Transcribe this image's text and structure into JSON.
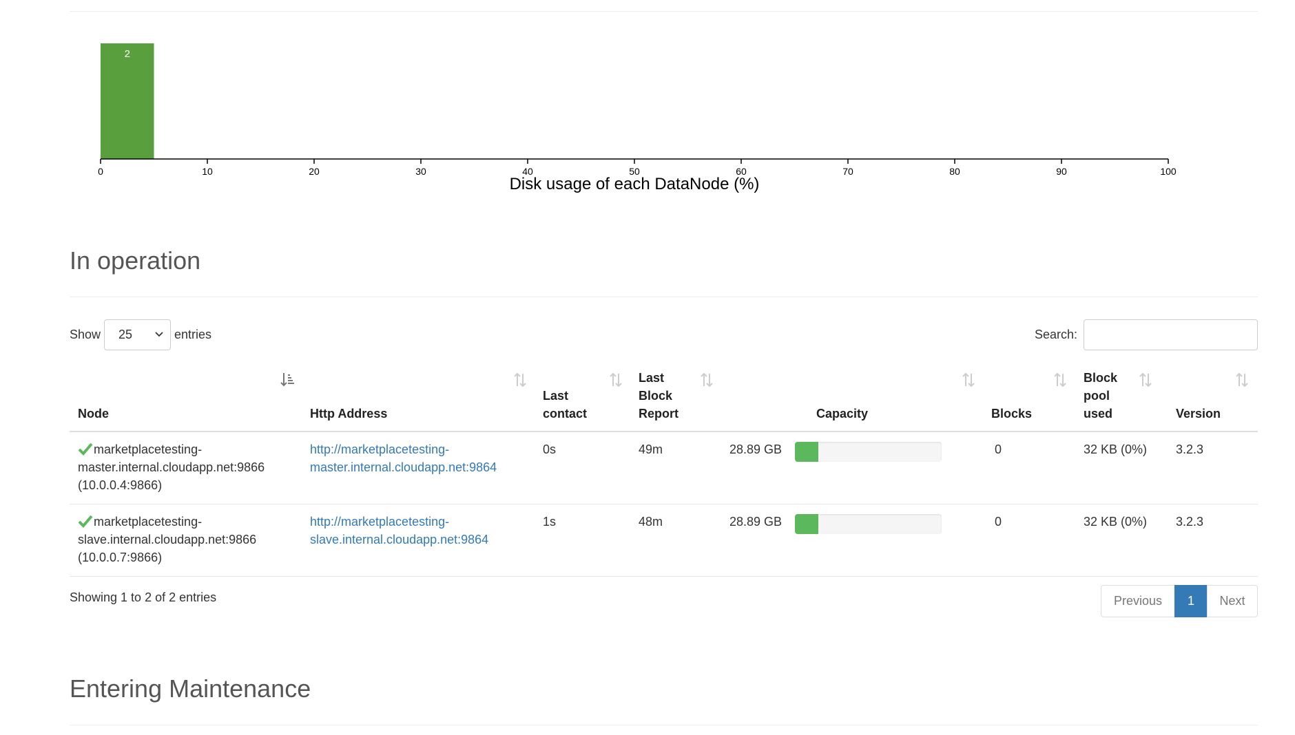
{
  "chart_data": {
    "type": "bar",
    "title": "",
    "xlabel": "Disk usage of each DataNode (%)",
    "ylabel": "",
    "x_ticks": [
      0,
      10,
      20,
      30,
      40,
      50,
      60,
      70,
      80,
      90,
      100
    ],
    "xlim": [
      0,
      100
    ],
    "bins": [
      {
        "x0": 0,
        "x1": 5,
        "count": 2,
        "label": "2"
      }
    ],
    "grid": false,
    "bar_color": "#5a9f3e"
  },
  "sections": {
    "in_operation": "In operation",
    "entering_maintenance": "Entering Maintenance"
  },
  "controls": {
    "show_label": "Show",
    "page_size": "25",
    "entries_label": "entries",
    "search_label": "Search:",
    "search_value": ""
  },
  "table": {
    "headers": {
      "node": "Node",
      "http": "Http Address",
      "contact_1": "Last",
      "contact_2": "contact",
      "report_1": "Last",
      "report_2": "Block",
      "report_3": "Report",
      "capacity": "Capacity",
      "blocks": "Blocks",
      "pool_1": "Block",
      "pool_2": "pool",
      "pool_3": "used",
      "version": "Version"
    },
    "rows": [
      {
        "node": "marketplacetesting-master.internal.cloudapp.net:9866 (10.0.0.4:9866)",
        "http": "http://marketplacetesting-master.internal.cloudapp.net:9864",
        "last_contact": "0s",
        "last_block_report": "49m",
        "capacity": "28.89 GB",
        "used_fraction": 0.16,
        "blocks": "0",
        "block_pool_used": "32 KB (0%)",
        "version": "3.2.3"
      },
      {
        "node": "marketplacetesting-slave.internal.cloudapp.net:9866 (10.0.0.7:9866)",
        "http": "http://marketplacetesting-slave.internal.cloudapp.net:9864",
        "last_contact": "1s",
        "last_block_report": "48m",
        "capacity": "28.89 GB",
        "used_fraction": 0.16,
        "blocks": "0",
        "block_pool_used": "32 KB (0%)",
        "version": "3.2.3"
      }
    ]
  },
  "footer": {
    "info": "Showing 1 to 2 of 2 entries",
    "prev": "Previous",
    "page": "1",
    "next": "Next"
  }
}
